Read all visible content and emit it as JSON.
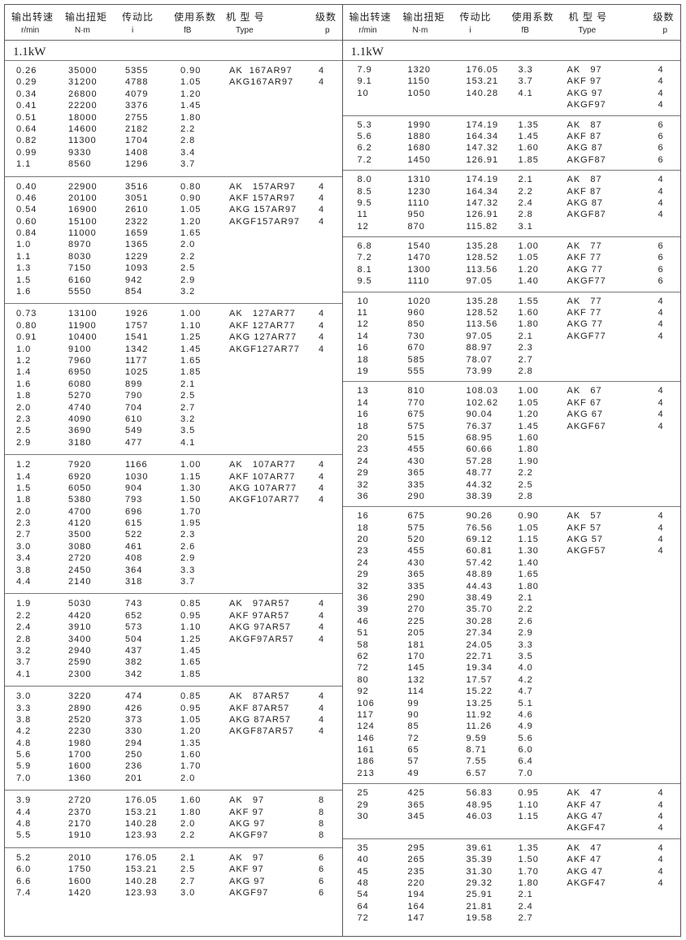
{
  "header": {
    "speed_cn": "输出转速",
    "speed_unit": "r/min",
    "torque_cn": "输出扭矩",
    "torque_unit": "N·m",
    "ratio_cn": "传动比",
    "ratio_unit": "i",
    "factor_cn": "使用系数",
    "factor_unit": "fB",
    "type_cn": "机 型 号",
    "type_unit": "Type",
    "poles_cn": "级数",
    "poles_unit": "p"
  },
  "power_label": "1.1kW",
  "left_blocks": [
    [
      [
        "0.26",
        "35000",
        "5355",
        "0.90",
        "AK  167AR97",
        "4"
      ],
      [
        "0.29",
        "31200",
        "4788",
        "1.05",
        "AKG167AR97",
        "4"
      ],
      [
        "0.34",
        "26800",
        "4079",
        "1.20",
        "",
        ""
      ],
      [
        "0.41",
        "22200",
        "3376",
        "1.45",
        "",
        ""
      ],
      [
        "0.51",
        "18000",
        "2755",
        "1.80",
        "",
        ""
      ],
      [
        "0.64",
        "14600",
        "2182",
        "2.2",
        "",
        ""
      ],
      [
        "0.82",
        "11300",
        "1704",
        "2.8",
        "",
        ""
      ],
      [
        "0.99",
        "9330",
        "1408",
        "3.4",
        "",
        ""
      ],
      [
        "1.1",
        "8560",
        "1296",
        "3.7",
        "",
        ""
      ]
    ],
    [
      [
        "0.40",
        "22900",
        "3516",
        "0.80",
        "AK   157AR97",
        "4"
      ],
      [
        "0.46",
        "20100",
        "3051",
        "0.90",
        "AKF 157AR97",
        "4"
      ],
      [
        "0.54",
        "16900",
        "2610",
        "1.05",
        "AKG 157AR97",
        "4"
      ],
      [
        "0.60",
        "15100",
        "2322",
        "1.20",
        "AKGF157AR97",
        "4"
      ],
      [
        "0.84",
        "11000",
        "1659",
        "1.65",
        "",
        ""
      ],
      [
        "1.0",
        "8970",
        "1365",
        "2.0",
        "",
        ""
      ],
      [
        "1.1",
        "8030",
        "1229",
        "2.2",
        "",
        ""
      ],
      [
        "1.3",
        "7150",
        "1093",
        "2.5",
        "",
        ""
      ],
      [
        "1.5",
        "6160",
        "942",
        "2.9",
        "",
        ""
      ],
      [
        "1.6",
        "5550",
        "854",
        "3.2",
        "",
        ""
      ]
    ],
    [
      [
        "0.73",
        "13100",
        "1926",
        "1.00",
        "AK   127AR77",
        "4"
      ],
      [
        "0.80",
        "11900",
        "1757",
        "1.10",
        "AKF 127AR77",
        "4"
      ],
      [
        "0.91",
        "10400",
        "1541",
        "1.25",
        "AKG 127AR77",
        "4"
      ],
      [
        "1.0",
        "9100",
        "1342",
        "1.45",
        "AKGF127AR77",
        "4"
      ],
      [
        "1.2",
        "7960",
        "1177",
        "1.65",
        "",
        ""
      ],
      [
        "1.4",
        "6950",
        "1025",
        "1.85",
        "",
        ""
      ],
      [
        "1.6",
        "6080",
        "899",
        "2.1",
        "",
        ""
      ],
      [
        "1.8",
        "5270",
        "790",
        "2.5",
        "",
        ""
      ],
      [
        "2.0",
        "4740",
        "704",
        "2.7",
        "",
        ""
      ],
      [
        "2.3",
        "4090",
        "610",
        "3.2",
        "",
        ""
      ],
      [
        "2.5",
        "3690",
        "549",
        "3.5",
        "",
        ""
      ],
      [
        "2.9",
        "3180",
        "477",
        "4.1",
        "",
        ""
      ]
    ],
    [
      [
        "1.2",
        "7920",
        "1166",
        "1.00",
        "AK   107AR77",
        "4"
      ],
      [
        "1.4",
        "6920",
        "1030",
        "1.15",
        "AKF 107AR77",
        "4"
      ],
      [
        "1.5",
        "6050",
        "904",
        "1.30",
        "AKG 107AR77",
        "4"
      ],
      [
        "1.8",
        "5380",
        "793",
        "1.50",
        "AKGF107AR77",
        "4"
      ],
      [
        "2.0",
        "4700",
        "696",
        "1.70",
        "",
        ""
      ],
      [
        "2.3",
        "4120",
        "615",
        "1.95",
        "",
        ""
      ],
      [
        "2.7",
        "3500",
        "522",
        "2.3",
        "",
        ""
      ],
      [
        "3.0",
        "3080",
        "461",
        "2.6",
        "",
        ""
      ],
      [
        "3.4",
        "2720",
        "408",
        "2.9",
        "",
        ""
      ],
      [
        "3.8",
        "2450",
        "364",
        "3.3",
        "",
        ""
      ],
      [
        "4.4",
        "2140",
        "318",
        "3.7",
        "",
        ""
      ]
    ],
    [
      [
        "1.9",
        "5030",
        "743",
        "0.85",
        "AK   97AR57",
        "4"
      ],
      [
        "2.2",
        "4420",
        "652",
        "0.95",
        "AKF 97AR57",
        "4"
      ],
      [
        "2.4",
        "3910",
        "573",
        "1.10",
        "AKG 97AR57",
        "4"
      ],
      [
        "2.8",
        "3400",
        "504",
        "1.25",
        "AKGF97AR57",
        "4"
      ],
      [
        "3.2",
        "2940",
        "437",
        "1.45",
        "",
        ""
      ],
      [
        "3.7",
        "2590",
        "382",
        "1.65",
        "",
        ""
      ],
      [
        "4.1",
        "2300",
        "342",
        "1.85",
        "",
        ""
      ]
    ],
    [
      [
        "3.0",
        "3220",
        "474",
        "0.85",
        "AK   87AR57",
        "4"
      ],
      [
        "3.3",
        "2890",
        "426",
        "0.95",
        "AKF 87AR57",
        "4"
      ],
      [
        "3.8",
        "2520",
        "373",
        "1.05",
        "AKG 87AR57",
        "4"
      ],
      [
        "4.2",
        "2230",
        "330",
        "1.20",
        "AKGF87AR57",
        "4"
      ],
      [
        "4.8",
        "1980",
        "294",
        "1.35",
        "",
        ""
      ],
      [
        "5.6",
        "1700",
        "250",
        "1.60",
        "",
        ""
      ],
      [
        "5.9",
        "1600",
        "236",
        "1.70",
        "",
        ""
      ],
      [
        "7.0",
        "1360",
        "201",
        "2.0",
        "",
        ""
      ]
    ],
    [
      [
        "3.9",
        "2720",
        "176.05",
        "1.60",
        "AK   97",
        "8"
      ],
      [
        "4.4",
        "2370",
        "153.21",
        "1.80",
        "AKF 97",
        "8"
      ],
      [
        "4.8",
        "2170",
        "140.28",
        "2.0",
        "AKG 97",
        "8"
      ],
      [
        "5.5",
        "1910",
        "123.93",
        "2.2",
        "AKGF97",
        "8"
      ]
    ],
    [
      [
        "5.2",
        "2010",
        "176.05",
        "2.1",
        "AK   97",
        "6"
      ],
      [
        "6.0",
        "1750",
        "153.21",
        "2.5",
        "AKF 97",
        "6"
      ],
      [
        "6.6",
        "1600",
        "140.28",
        "2.7",
        "AKG 97",
        "6"
      ],
      [
        "7.4",
        "1420",
        "123.93",
        "3.0",
        "AKGF97",
        "6"
      ]
    ]
  ],
  "right_blocks": [
    [
      [
        "7.9",
        "1320",
        "176.05",
        "3.3",
        "AK   97",
        "4"
      ],
      [
        "9.1",
        "1150",
        "153.21",
        "3.7",
        "AKF 97",
        "4"
      ],
      [
        "10",
        "1050",
        "140.28",
        "4.1",
        "AKG 97",
        "4"
      ],
      [
        "",
        "",
        "",
        "",
        "AKGF97",
        "4"
      ]
    ],
    [
      [
        "5.3",
        "1990",
        "174.19",
        "1.35",
        "AK   87",
        "6"
      ],
      [
        "5.6",
        "1880",
        "164.34",
        "1.45",
        "AKF 87",
        "6"
      ],
      [
        "6.2",
        "1680",
        "147.32",
        "1.60",
        "AKG 87",
        "6"
      ],
      [
        "7.2",
        "1450",
        "126.91",
        "1.85",
        "AKGF87",
        "6"
      ]
    ],
    [
      [
        "8.0",
        "1310",
        "174.19",
        "2.1",
        "AK   87",
        "4"
      ],
      [
        "8.5",
        "1230",
        "164.34",
        "2.2",
        "AKF 87",
        "4"
      ],
      [
        "9.5",
        "1110",
        "147.32",
        "2.4",
        "AKG 87",
        "4"
      ],
      [
        "11",
        "950",
        "126.91",
        "2.8",
        "AKGF87",
        "4"
      ],
      [
        "12",
        "870",
        "115.82",
        "3.1",
        "",
        ""
      ]
    ],
    [
      [
        "6.8",
        "1540",
        "135.28",
        "1.00",
        "AK   77",
        "6"
      ],
      [
        "7.2",
        "1470",
        "128.52",
        "1.05",
        "AKF 77",
        "6"
      ],
      [
        "8.1",
        "1300",
        "113.56",
        "1.20",
        "AKG 77",
        "6"
      ],
      [
        "9.5",
        "1110",
        "97.05",
        "1.40",
        "AKGF77",
        "6"
      ]
    ],
    [
      [
        "10",
        "1020",
        "135.28",
        "1.55",
        "AK   77",
        "4"
      ],
      [
        "11",
        "960",
        "128.52",
        "1.60",
        "AKF 77",
        "4"
      ],
      [
        "12",
        "850",
        "113.56",
        "1.80",
        "AKG 77",
        "4"
      ],
      [
        "14",
        "730",
        "97.05",
        "2.1",
        "AKGF77",
        "4"
      ],
      [
        "16",
        "670",
        "88.97",
        "2.3",
        "",
        ""
      ],
      [
        "18",
        "585",
        "78.07",
        "2.7",
        "",
        ""
      ],
      [
        "19",
        "555",
        "73.99",
        "2.8",
        "",
        ""
      ]
    ],
    [
      [
        "13",
        "810",
        "108.03",
        "1.00",
        "AK   67",
        "4"
      ],
      [
        "14",
        "770",
        "102.62",
        "1.05",
        "AKF 67",
        "4"
      ],
      [
        "16",
        "675",
        "90.04",
        "1.20",
        "AKG 67",
        "4"
      ],
      [
        "18",
        "575",
        "76.37",
        "1.45",
        "AKGF67",
        "4"
      ],
      [
        "20",
        "515",
        "68.95",
        "1.60",
        "",
        ""
      ],
      [
        "23",
        "455",
        "60.66",
        "1.80",
        "",
        ""
      ],
      [
        "24",
        "430",
        "57.28",
        "1.90",
        "",
        ""
      ],
      [
        "29",
        "365",
        "48.77",
        "2.2",
        "",
        ""
      ],
      [
        "32",
        "335",
        "44.32",
        "2.5",
        "",
        ""
      ],
      [
        "36",
        "290",
        "38.39",
        "2.8",
        "",
        ""
      ]
    ],
    [
      [
        "16",
        "675",
        "90.26",
        "0.90",
        "AK   57",
        "4"
      ],
      [
        "18",
        "575",
        "76.56",
        "1.05",
        "AKF 57",
        "4"
      ],
      [
        "20",
        "520",
        "69.12",
        "1.15",
        "AKG 57",
        "4"
      ],
      [
        "23",
        "455",
        "60.81",
        "1.30",
        "AKGF57",
        "4"
      ],
      [
        "24",
        "430",
        "57.42",
        "1.40",
        "",
        ""
      ],
      [
        "29",
        "365",
        "48.89",
        "1.65",
        "",
        ""
      ],
      [
        "32",
        "335",
        "44.43",
        "1.80",
        "",
        ""
      ],
      [
        "36",
        "290",
        "38.49",
        "2.1",
        "",
        ""
      ],
      [
        "39",
        "270",
        "35.70",
        "2.2",
        "",
        ""
      ],
      [
        "46",
        "225",
        "30.28",
        "2.6",
        "",
        ""
      ],
      [
        "51",
        "205",
        "27.34",
        "2.9",
        "",
        ""
      ],
      [
        "58",
        "181",
        "24.05",
        "3.3",
        "",
        ""
      ],
      [
        "62",
        "170",
        "22.71",
        "3.5",
        "",
        ""
      ],
      [
        "72",
        "145",
        "19.34",
        "4.0",
        "",
        ""
      ],
      [
        "80",
        "132",
        "17.57",
        "4.2",
        "",
        ""
      ],
      [
        "92",
        "114",
        "15.22",
        "4.7",
        "",
        ""
      ],
      [
        "106",
        "99",
        "13.25",
        "5.1",
        "",
        ""
      ],
      [
        "117",
        "90",
        "11.92",
        "4.6",
        "",
        ""
      ],
      [
        "124",
        "85",
        "11.26",
        "4.9",
        "",
        ""
      ],
      [
        "146",
        "72",
        "9.59",
        "5.6",
        "",
        ""
      ],
      [
        "161",
        "65",
        "8.71",
        "6.0",
        "",
        ""
      ],
      [
        "186",
        "57",
        "7.55",
        "6.4",
        "",
        ""
      ],
      [
        "213",
        "49",
        "6.57",
        "7.0",
        "",
        ""
      ]
    ],
    [
      [
        "25",
        "425",
        "56.83",
        "0.95",
        "AK   47",
        "4"
      ],
      [
        "29",
        "365",
        "48.95",
        "1.10",
        "AKF 47",
        "4"
      ],
      [
        "30",
        "345",
        "46.03",
        "1.15",
        "AKG 47",
        "4"
      ],
      [
        "",
        "",
        "",
        "",
        "AKGF47",
        "4"
      ]
    ],
    [
      [
        "35",
        "295",
        "39.61",
        "1.35",
        "AK   47",
        "4"
      ],
      [
        "40",
        "265",
        "35.39",
        "1.50",
        "AKF 47",
        "4"
      ],
      [
        "45",
        "235",
        "31.30",
        "1.70",
        "AKG 47",
        "4"
      ],
      [
        "48",
        "220",
        "29.32",
        "1.80",
        "AKGF47",
        "4"
      ],
      [
        "54",
        "194",
        "25.91",
        "2.1",
        "",
        ""
      ],
      [
        "64",
        "164",
        "21.81",
        "2.4",
        "",
        ""
      ],
      [
        "72",
        "147",
        "19.58",
        "2.7",
        "",
        ""
      ]
    ]
  ]
}
